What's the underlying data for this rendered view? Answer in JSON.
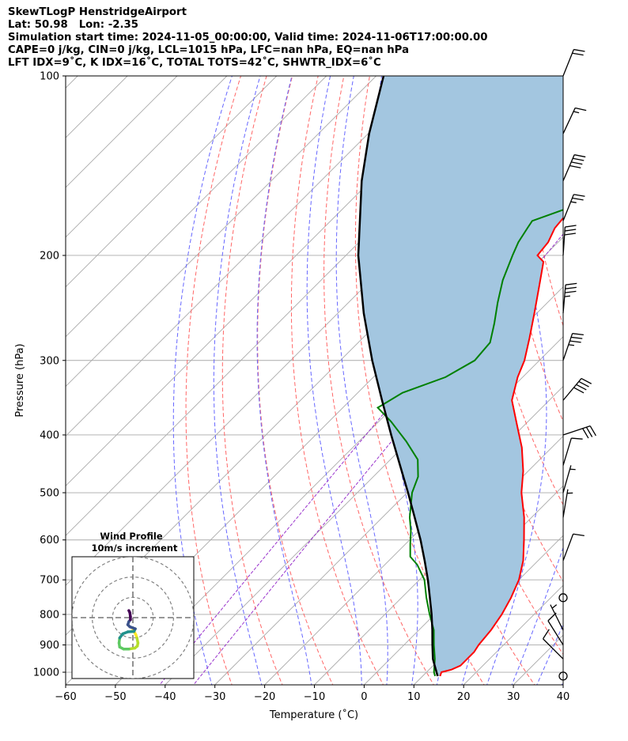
{
  "header": {
    "line1": "SkewTLogP HenstridgeAirport",
    "line2": "Lat: 50.98   Lon: -2.35",
    "line3": "Simulation start time: 2024-11-05_00:00:00, Valid time: 2024-11-06T17:00:00.00",
    "line4": "CAPE=0 j/kg, CIN=0 j/kg, LCL=1015 hPa, LFC=nan hPa, EQ=nan hPa",
    "line5": "LFT IDX=9˚C, K IDX=16˚C, TOTAL TOTS=42˚C, SHWTR_IDX=6˚C"
  },
  "colors": {
    "temperature": "#ff0000",
    "dewpoint": "#008000",
    "parcel": "#000000",
    "cape_fill": "#a3c6e0",
    "dry_adiabat": "#ff6666",
    "moist_adiabat": "#6666ff",
    "mixing_ratio": "#9933cc",
    "isotherm": "#aaaaaa"
  },
  "chart_data": {
    "type": "line",
    "title": "",
    "xlabel": "Temperature (˚C)",
    "ylabel": "Pressure (hPa)",
    "xlim": [
      -60,
      40
    ],
    "ylim": [
      1050,
      100
    ],
    "yscale": "log",
    "skew": true,
    "grid": true,
    "x_ticks": [
      "−60",
      "−50",
      "−40",
      "−30",
      "−20",
      "−10",
      "0",
      "10",
      "20",
      "30",
      "40"
    ],
    "x_tick_values": [
      -60,
      -50,
      -40,
      -30,
      -20,
      -10,
      0,
      10,
      20,
      30,
      40
    ],
    "y_ticks": [
      "100",
      "200",
      "300",
      "400",
      "500",
      "600",
      "700",
      "800",
      "900",
      "1000"
    ],
    "y_tick_values": [
      100,
      200,
      300,
      400,
      500,
      600,
      700,
      800,
      900,
      1000
    ],
    "series": [
      {
        "key": "temperature",
        "points": [
          [
            1015,
            13.5
          ],
          [
            1000,
            13.0
          ],
          [
            990,
            14.5
          ],
          [
            975,
            15.5
          ],
          [
            950,
            15.5
          ],
          [
            925,
            15.5
          ],
          [
            900,
            15.0
          ],
          [
            850,
            14.5
          ],
          [
            800,
            13.5
          ],
          [
            750,
            12.0
          ],
          [
            700,
            10.0
          ],
          [
            650,
            7.0
          ],
          [
            600,
            3.0
          ],
          [
            550,
            -1.5
          ],
          [
            500,
            -7.0
          ],
          [
            460,
            -11.0
          ],
          [
            420,
            -16.0
          ],
          [
            385,
            -21.5
          ],
          [
            350,
            -27.5
          ],
          [
            320,
            -31.0
          ],
          [
            300,
            -33.0
          ],
          [
            275,
            -36.5
          ],
          [
            250,
            -40.5
          ],
          [
            225,
            -45.0
          ],
          [
            205,
            -49.0
          ],
          [
            200,
            -51.5
          ],
          [
            190,
            -52.0
          ],
          [
            180,
            -53.5
          ],
          [
            170,
            -54.0
          ],
          [
            160,
            -54.5
          ],
          [
            150,
            -54.5
          ],
          [
            140,
            -54.0
          ],
          [
            130,
            -54.5
          ],
          [
            120,
            -55.0
          ],
          [
            110,
            -55.5
          ],
          [
            100,
            -56.5
          ]
        ]
      },
      {
        "key": "dewpoint",
        "points": [
          [
            1015,
            12.5
          ],
          [
            1000,
            11.5
          ],
          [
            950,
            9.0
          ],
          [
            900,
            6.0
          ],
          [
            850,
            3.0
          ],
          [
            800,
            -1.0
          ],
          [
            750,
            -5.0
          ],
          [
            700,
            -9.0
          ],
          [
            660,
            -13.5
          ],
          [
            640,
            -16.5
          ],
          [
            610,
            -19.0
          ],
          [
            580,
            -21.5
          ],
          [
            550,
            -24.5
          ],
          [
            500,
            -29.0
          ],
          [
            470,
            -31.0
          ],
          [
            440,
            -34.5
          ],
          [
            410,
            -40.5
          ],
          [
            380,
            -47.5
          ],
          [
            360,
            -53.0
          ],
          [
            340,
            -51.0
          ],
          [
            320,
            -45.5
          ],
          [
            300,
            -43.0
          ],
          [
            280,
            -43.5
          ],
          [
            260,
            -46.5
          ],
          [
            240,
            -50.0
          ],
          [
            220,
            -53.5
          ],
          [
            200,
            -56.5
          ],
          [
            190,
            -58.0
          ],
          [
            180,
            -59.0
          ],
          [
            175,
            -59.5
          ],
          [
            165,
            -54.0
          ],
          [
            158,
            -53.5
          ],
          [
            150,
            -55.0
          ],
          [
            140,
            -57.0
          ],
          [
            130,
            -58.0
          ],
          [
            120,
            -58.0
          ],
          [
            110,
            -58.5
          ],
          [
            100,
            -59.5
          ]
        ]
      },
      {
        "key": "parcel",
        "points": [
          [
            1015,
            13.0
          ],
          [
            950,
            8.6
          ],
          [
            900,
            5.7
          ],
          [
            850,
            2.7
          ],
          [
            800,
            -0.6
          ],
          [
            750,
            -4.3
          ],
          [
            700,
            -8.3
          ],
          [
            650,
            -12.8
          ],
          [
            600,
            -17.8
          ],
          [
            550,
            -23.5
          ],
          [
            500,
            -29.8
          ],
          [
            450,
            -36.9
          ],
          [
            400,
            -44.8
          ],
          [
            350,
            -53.6
          ],
          [
            300,
            -63.6
          ],
          [
            250,
            -74.8
          ],
          [
            200,
            -87.5
          ],
          [
            150,
            -101.8
          ],
          [
            125,
            -109.8
          ],
          [
            100,
            -118.5
          ]
        ]
      }
    ],
    "hodograph": {
      "title": "Wind Profile",
      "subtitle": "10m/s increment",
      "max_speed": 30,
      "points": [
        [
          0.0,
          -6.0
        ],
        [
          0.8,
          -7.2
        ],
        [
          1.5,
          -8.5
        ],
        [
          2.0,
          -10.0
        ],
        [
          2.5,
          -12.5
        ],
        [
          2.2,
          -14.0
        ],
        [
          1.0,
          -15.0
        ],
        [
          -2.0,
          -15.5
        ],
        [
          -4.5,
          -15.5
        ],
        [
          -6.5,
          -14.5
        ],
        [
          -6.8,
          -12.5
        ],
        [
          -6.5,
          -10.0
        ],
        [
          -5.0,
          -8.0
        ],
        [
          -2.5,
          -7.0
        ],
        [
          0.5,
          -6.8
        ],
        [
          1.2,
          -5.5
        ],
        [
          -1.5,
          -4.5
        ],
        [
          -2.5,
          -3.5
        ],
        [
          -2.0,
          -2.0
        ],
        [
          -1.2,
          -1.0
        ],
        [
          -1.2,
          0.5
        ],
        [
          -1.5,
          2.5
        ],
        [
          -2.0,
          3.5
        ]
      ],
      "colormap": [
        "#440154",
        "#3b528b",
        "#21918c",
        "#5ec962",
        "#b5de2b",
        "#fde725"
      ]
    },
    "wind_barbs": [
      {
        "p": 100,
        "u": -8,
        "v": -20
      },
      {
        "p": 125,
        "u": -7,
        "v": -15
      },
      {
        "p": 150,
        "u": -15,
        "v": -35
      },
      {
        "p": 175,
        "u": -10,
        "v": -25
      },
      {
        "p": 200,
        "u": -2,
        "v": -30
      },
      {
        "p": 250,
        "u": -3,
        "v": -35
      },
      {
        "p": 300,
        "u": -12,
        "v": -35
      },
      {
        "p": 350,
        "u": -25,
        "v": -30
      },
      {
        "p": 400,
        "u": -30,
        "v": -10
      },
      {
        "p": 450,
        "u": -3,
        "v": -10
      },
      {
        "p": 500,
        "u": -2,
        "v": -7
      },
      {
        "p": 550,
        "u": -1,
        "v": -6
      },
      {
        "p": 650,
        "u": -3,
        "v": -8
      },
      {
        "p": 750,
        "u": 0,
        "v": 0
      },
      {
        "p": 850,
        "u": 3,
        "v": -6
      },
      {
        "p": 900,
        "u": 5,
        "v": -8
      },
      {
        "p": 950,
        "u": 8,
        "v": -8
      },
      {
        "p": 1015,
        "u": 0,
        "v": 0
      }
    ]
  }
}
